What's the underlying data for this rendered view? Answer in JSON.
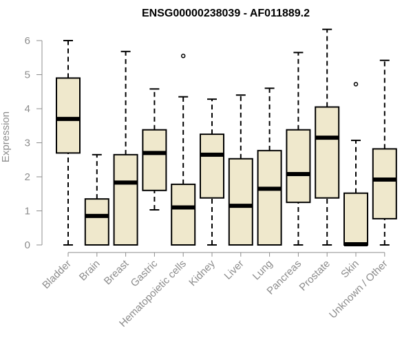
{
  "chart_data": {
    "type": "boxplot",
    "title": "ENSG00000238039 - AF011889.2",
    "xlabel": "",
    "ylabel": "Expression",
    "ylim": [
      0,
      6.3
    ],
    "yticks": [
      0,
      1,
      2,
      3,
      4,
      5,
      6
    ],
    "grid": false,
    "box_fill": "#efe8cc",
    "stroke_color": "#000000",
    "categories": [
      "Bladder",
      "Brain",
      "Breast",
      "Gastric",
      "Hematopoietic cells",
      "Kidney",
      "Liver",
      "Lung",
      "Pancreas",
      "Prostate",
      "Skin",
      "Unknown / Other"
    ],
    "boxes": [
      {
        "label": "Bladder",
        "min": 0,
        "q1": 2.7,
        "median": 3.7,
        "q3": 4.9,
        "max": 6.0,
        "outliers": []
      },
      {
        "label": "Brain",
        "min": 0,
        "q1": 0,
        "median": 0.85,
        "q3": 1.35,
        "max": 2.65,
        "outliers": []
      },
      {
        "label": "Breast",
        "min": 0,
        "q1": 0,
        "median": 1.83,
        "q3": 2.65,
        "max": 5.68,
        "outliers": []
      },
      {
        "label": "Gastric",
        "min": 1.03,
        "q1": 1.6,
        "median": 2.7,
        "q3": 3.38,
        "max": 4.58,
        "outliers": []
      },
      {
        "label": "Hematopoietic cells",
        "min": 0,
        "q1": 0,
        "median": 1.1,
        "q3": 1.78,
        "max": 4.35,
        "outliers": [
          5.55
        ]
      },
      {
        "label": "Kidney",
        "min": 0,
        "q1": 1.38,
        "median": 2.65,
        "q3": 3.25,
        "max": 4.28,
        "outliers": []
      },
      {
        "label": "Liver",
        "min": 0,
        "q1": 0,
        "median": 1.15,
        "q3": 2.53,
        "max": 4.4,
        "outliers": []
      },
      {
        "label": "Lung",
        "min": 0,
        "q1": 0,
        "median": 1.65,
        "q3": 2.77,
        "max": 4.6,
        "outliers": []
      },
      {
        "label": "Pancreas",
        "min": 0,
        "q1": 1.25,
        "median": 2.08,
        "q3": 3.38,
        "max": 5.65,
        "outliers": []
      },
      {
        "label": "Prostate",
        "min": 0,
        "q1": 1.38,
        "median": 3.15,
        "q3": 4.05,
        "max": 6.33,
        "outliers": []
      },
      {
        "label": "Skin",
        "min": 0,
        "q1": 0,
        "median": 0.02,
        "q3": 1.52,
        "max": 3.07,
        "outliers": [
          4.72
        ]
      },
      {
        "label": "Unknown / Other",
        "min": 0,
        "q1": 0.77,
        "median": 1.92,
        "q3": 2.82,
        "max": 5.42,
        "outliers": []
      }
    ]
  }
}
